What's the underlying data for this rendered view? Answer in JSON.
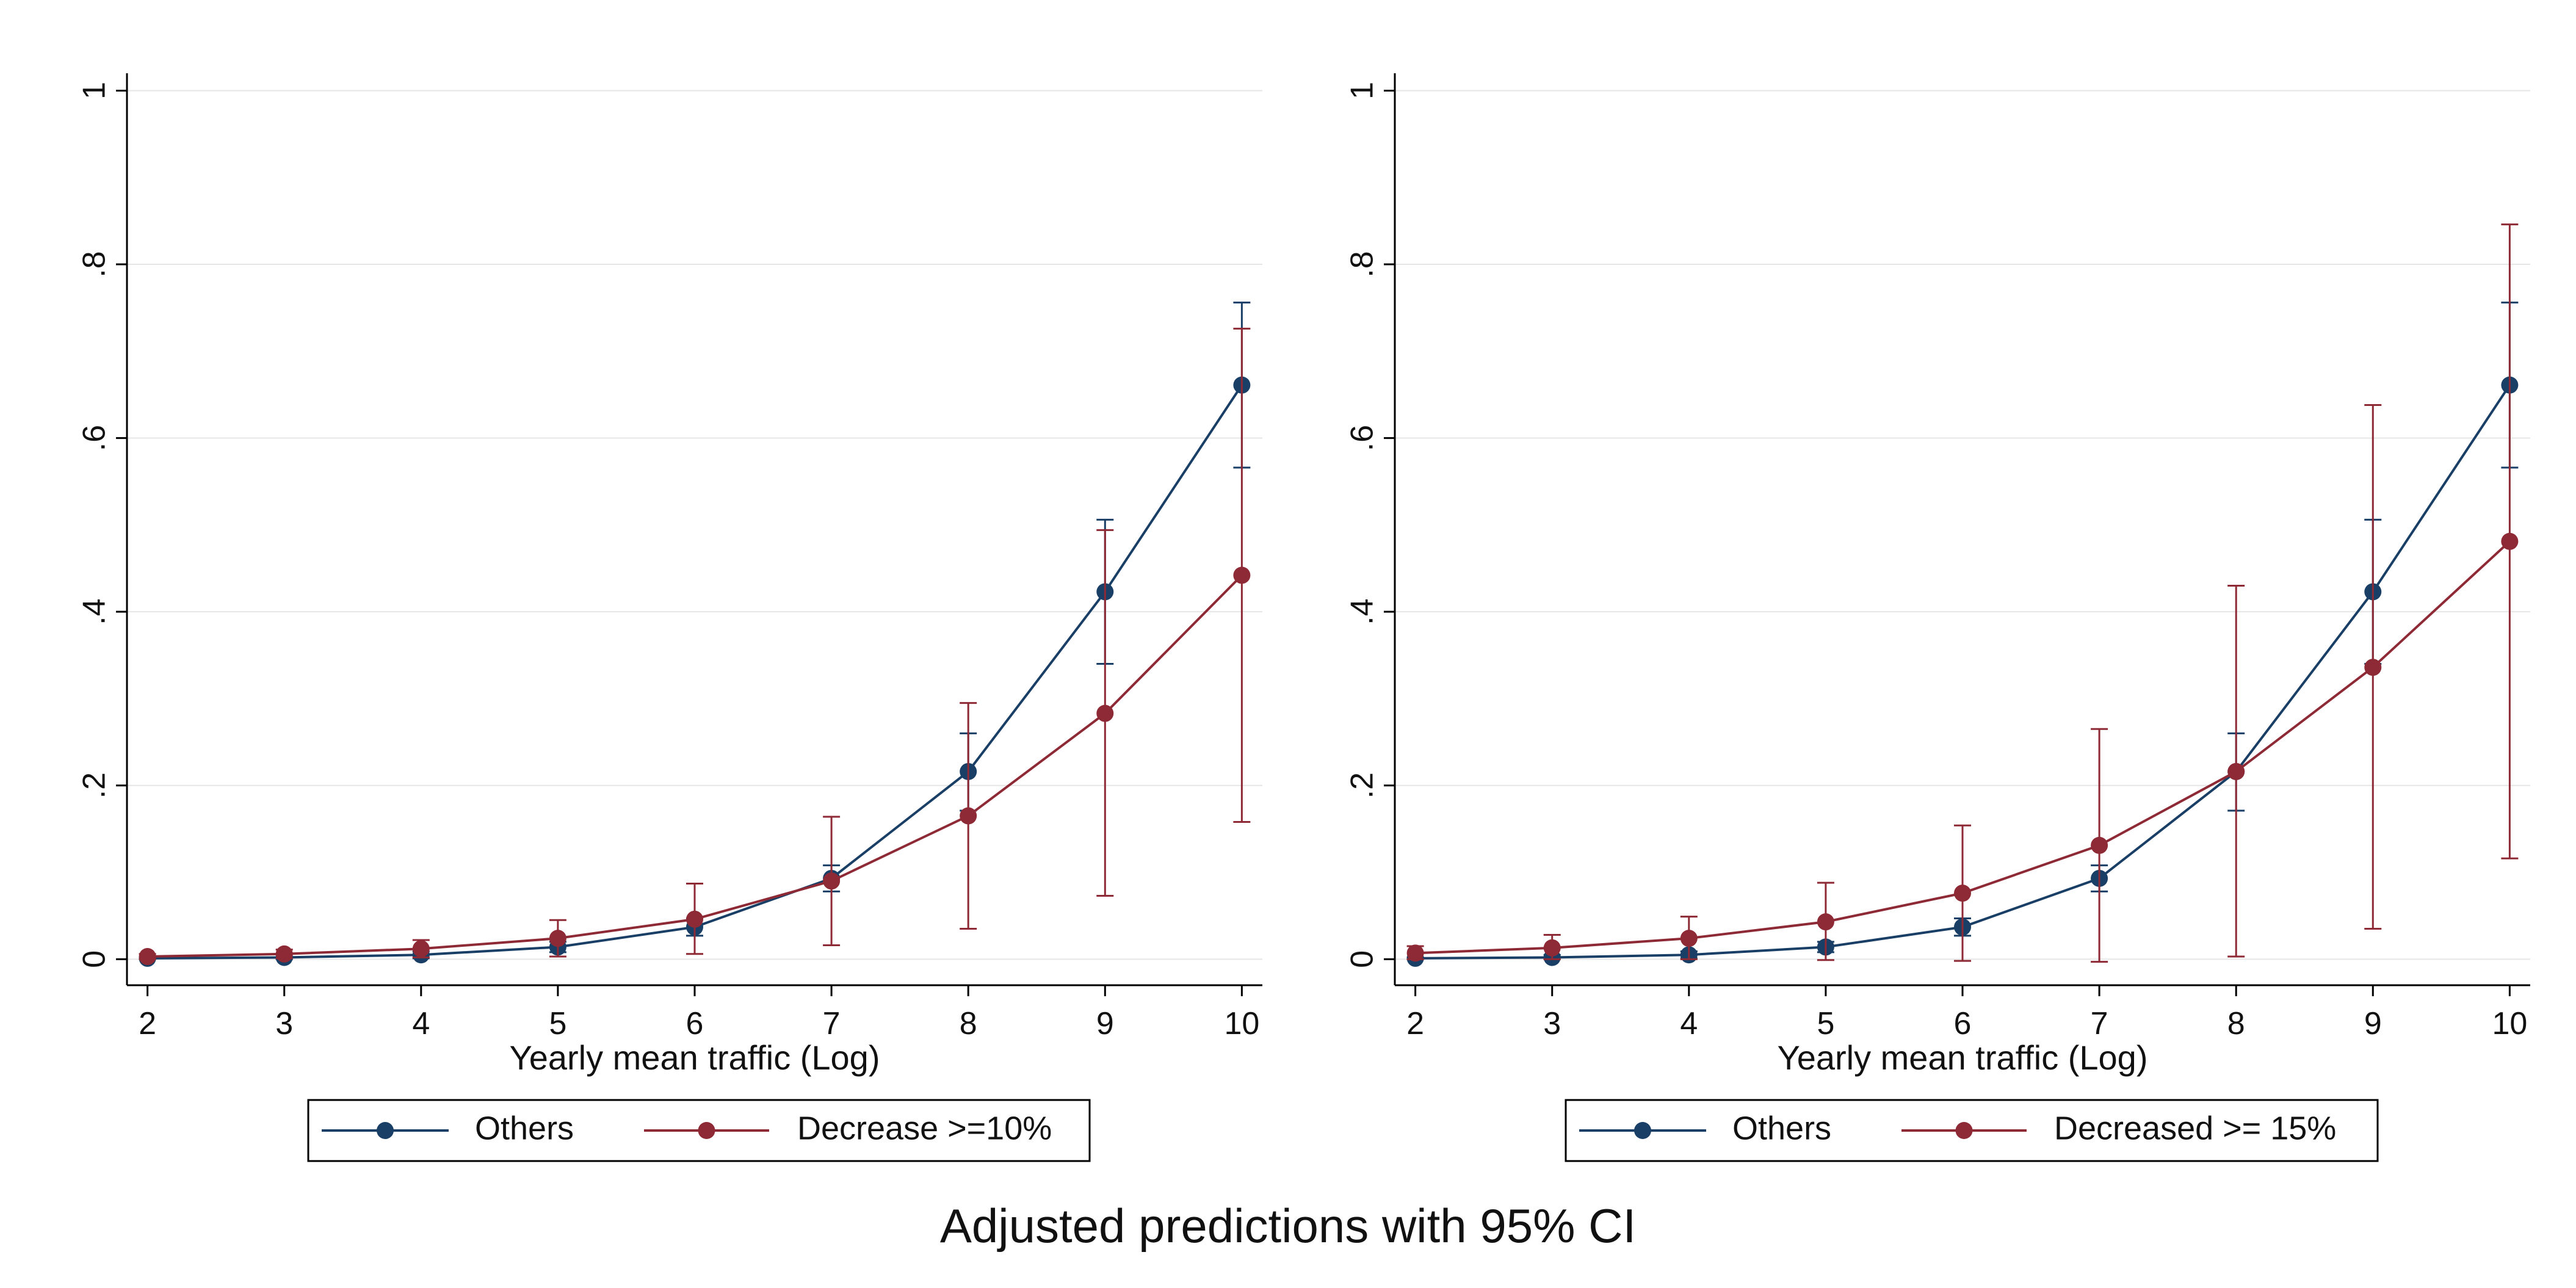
{
  "figure": {
    "title": "Adjusted predictions with 95% CI"
  },
  "colors": {
    "others": "#1a3f66",
    "decrease": "#8e2a35",
    "grid": "#e6e6e6",
    "axis": "#000000"
  },
  "chart_data": [
    {
      "type": "line",
      "xlabel": "Yearly mean traffic (Log)",
      "ylabel": "",
      "x": [
        2,
        3,
        4,
        5,
        6,
        7,
        8,
        9,
        10
      ],
      "xlim": [
        1.85,
        10.15
      ],
      "ylim": [
        -0.03,
        1.02
      ],
      "x_ticks": [
        "2",
        "3",
        "4",
        "5",
        "6",
        "7",
        "8",
        "9",
        "10"
      ],
      "y_ticks": [
        {
          "value": 0,
          "label": "0"
        },
        {
          "value": 0.2,
          "label": ".2"
        },
        {
          "value": 0.4,
          "label": ".4"
        },
        {
          "value": 0.6,
          "label": ".6"
        },
        {
          "value": 0.8,
          "label": ".8"
        },
        {
          "value": 1,
          "label": "1"
        }
      ],
      "grid": true,
      "legend_position": "bottom",
      "series": [
        {
          "name": "Others",
          "color_key": "others",
          "values": [
            0.001,
            0.002,
            0.005,
            0.014,
            0.037,
            0.093,
            0.216,
            0.423,
            0.661
          ],
          "ci_low": [
            0.0,
            0.0,
            0.001,
            0.008,
            0.027,
            0.078,
            0.171,
            0.34,
            0.566
          ],
          "ci_high": [
            0.002,
            0.005,
            0.009,
            0.02,
            0.047,
            0.108,
            0.26,
            0.506,
            0.756
          ]
        },
        {
          "name": "Decrease >=10%",
          "color_key": "decrease",
          "values": [
            0.003,
            0.006,
            0.012,
            0.024,
            0.046,
            0.09,
            0.165,
            0.283,
            0.442
          ],
          "ci_low": [
            0.0,
            0.001,
            0.002,
            0.003,
            0.006,
            0.016,
            0.035,
            0.073,
            0.158
          ],
          "ci_high": [
            0.006,
            0.011,
            0.022,
            0.045,
            0.087,
            0.164,
            0.295,
            0.494,
            0.726
          ]
        }
      ]
    },
    {
      "type": "line",
      "xlabel": "Yearly mean traffic (Log)",
      "ylabel": "",
      "x": [
        2,
        3,
        4,
        5,
        6,
        7,
        8,
        9,
        10
      ],
      "xlim": [
        1.85,
        10.15
      ],
      "ylim": [
        -0.03,
        1.02
      ],
      "x_ticks": [
        "2",
        "3",
        "4",
        "5",
        "6",
        "7",
        "8",
        "9",
        "10"
      ],
      "y_ticks": [
        {
          "value": 0,
          "label": "0"
        },
        {
          "value": 0.2,
          "label": ".2"
        },
        {
          "value": 0.4,
          "label": ".4"
        },
        {
          "value": 0.6,
          "label": ".6"
        },
        {
          "value": 0.8,
          "label": ".8"
        },
        {
          "value": 1,
          "label": "1"
        }
      ],
      "grid": true,
      "legend_position": "bottom",
      "series": [
        {
          "name": "Others",
          "color_key": "others",
          "values": [
            0.001,
            0.002,
            0.005,
            0.014,
            0.037,
            0.093,
            0.216,
            0.423,
            0.661
          ],
          "ci_low": [
            0.0,
            0.0,
            0.001,
            0.008,
            0.027,
            0.078,
            0.171,
            0.34,
            0.566
          ],
          "ci_high": [
            0.002,
            0.005,
            0.009,
            0.02,
            0.047,
            0.108,
            0.26,
            0.506,
            0.756
          ]
        },
        {
          "name": "Decreased >= 15%",
          "color_key": "decrease",
          "values": [
            0.007,
            0.013,
            0.024,
            0.043,
            0.076,
            0.131,
            0.216,
            0.336,
            0.481
          ],
          "ci_low": [
            0.0,
            0.0,
            0.0,
            -0.001,
            -0.002,
            -0.003,
            0.003,
            0.035,
            0.116
          ],
          "ci_high": [
            0.015,
            0.028,
            0.049,
            0.088,
            0.154,
            0.265,
            0.43,
            0.638,
            0.846
          ]
        }
      ]
    }
  ]
}
